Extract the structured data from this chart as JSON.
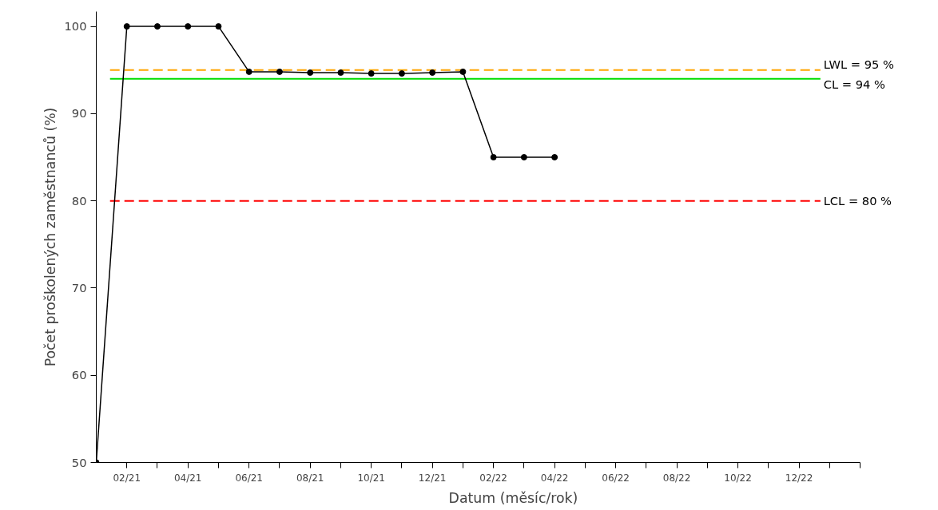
{
  "chart_data": {
    "type": "line",
    "xlabel": "Datum (měsíc/rok)",
    "ylabel": "Počet proškolených zaměstnanců (%)",
    "categories": [
      null,
      "02/21",
      null,
      "04/21",
      null,
      "06/21",
      null,
      "08/21",
      null,
      "10/21",
      null,
      "12/21",
      null,
      "02/22",
      null,
      "04/22",
      null,
      "06/22",
      null,
      "08/22",
      null,
      "10/22",
      null,
      "12/22",
      null,
      null
    ],
    "series": [
      {
        "color": "#000000",
        "values": [
          50,
          100,
          100,
          100,
          100,
          94.8,
          94.8,
          94.7,
          94.7,
          94.6,
          94.6,
          94.7,
          94.8,
          85,
          85,
          85,
          null,
          null,
          null,
          null,
          null,
          null,
          null,
          null,
          null,
          null
        ]
      }
    ],
    "ylim": [
      50,
      101.7
    ],
    "yticks": [
      50,
      60,
      70,
      80,
      90,
      100
    ],
    "marker": "circle",
    "line_style": "solid",
    "grid": false,
    "ref_lines": [
      {
        "axis": "y",
        "value": 95,
        "label": "LWL = 95 %",
        "color": "#ffa500",
        "line_style": "dashed"
      },
      {
        "axis": "y",
        "value": 94,
        "label": "CL = 94 %",
        "color": "#00dd00",
        "line_style": "solid"
      },
      {
        "axis": "y",
        "value": 80,
        "label": "LCL = 80 %",
        "color": "#ff0000",
        "line_style": "dashed"
      }
    ]
  }
}
